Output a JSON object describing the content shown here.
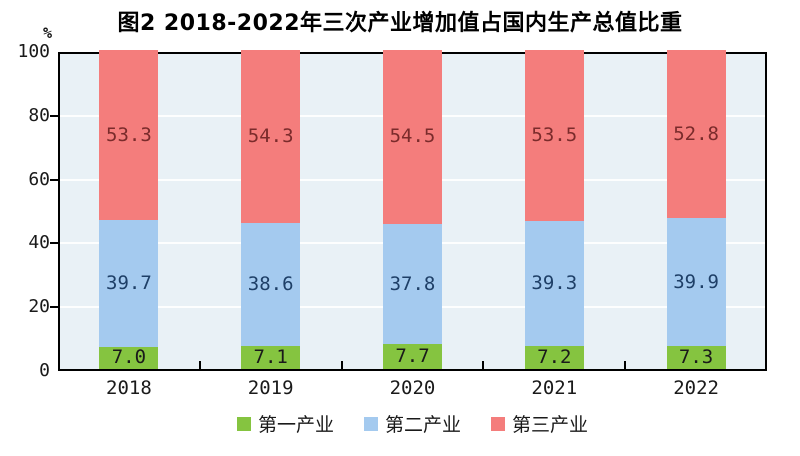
{
  "title": "图2 2018-2022年三次产业增加值占国内生产总值比重",
  "unit_label": "%",
  "chart_data": {
    "type": "bar",
    "stacked": true,
    "title": "图2 2018-2022年三次产业增加值占国内生产总值比重",
    "xlabel": "",
    "ylabel": "%",
    "categories": [
      "2018",
      "2019",
      "2020",
      "2021",
      "2022"
    ],
    "series": [
      {
        "name": "第一产业",
        "color": "#85c440",
        "label_color": "#1a1a1a",
        "values": [
          7.0,
          7.1,
          7.7,
          7.2,
          7.3
        ]
      },
      {
        "name": "第二产业",
        "color": "#a4caef",
        "label_color": "#1e3f67",
        "values": [
          39.7,
          38.6,
          37.8,
          39.3,
          39.9
        ]
      },
      {
        "name": "第三产业",
        "color": "#f47d7c",
        "label_color": "#7a2b2b",
        "values": [
          53.3,
          54.3,
          54.5,
          53.5,
          52.8
        ]
      }
    ],
    "ylim": [
      0,
      100
    ],
    "yticks": [
      0,
      20,
      40,
      60,
      80,
      100
    ],
    "grid": true,
    "grid_color": "#ffffff",
    "plot_background": "#e9f1f6",
    "legend_position": "bottom",
    "value_format": "1-decimal"
  }
}
